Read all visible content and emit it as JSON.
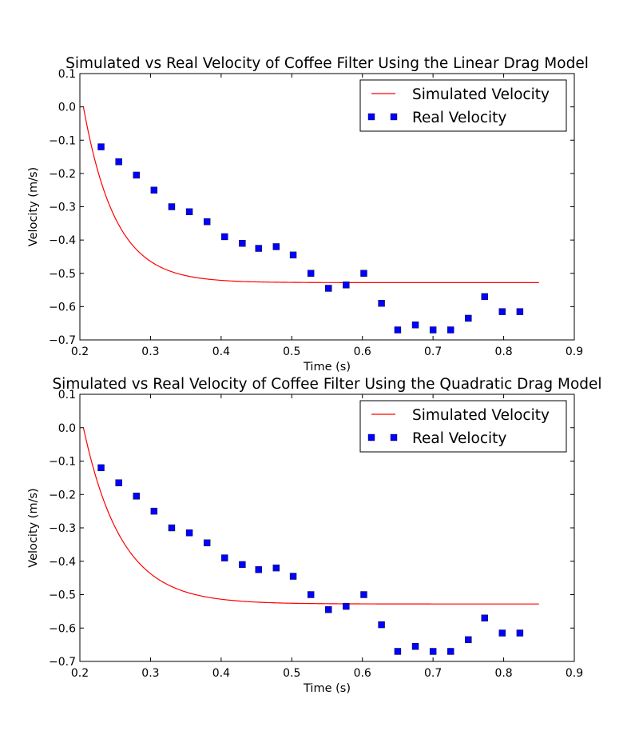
{
  "chart_data": [
    {
      "type": "line",
      "title": "Simulated vs Real Velocity of Coffee Filter Using the Linear Drag Model",
      "xlabel": "Time (s)",
      "ylabel": "Velocity (m/s)",
      "xlim": [
        0.2,
        0.9
      ],
      "ylim": [
        -0.7,
        0.1
      ],
      "xticks": [
        "0.2",
        "0.3",
        "0.4",
        "0.5",
        "0.6",
        "0.7",
        "0.8",
        "0.9"
      ],
      "yticks": [
        "0.1",
        "0.0",
        "−0.1",
        "−0.2",
        "−0.3",
        "−0.4",
        "−0.5",
        "−0.6",
        "−0.7"
      ],
      "legend_position": "top-right",
      "sim_model": {
        "start_time": 0.205,
        "end_time": 0.85,
        "terminal_velocity": -0.528,
        "time_constant": 0.045
      },
      "series": [
        {
          "name": "Simulated Velocity",
          "kind": "line",
          "color": "#ff0000"
        },
        {
          "name": "Real Velocity",
          "kind": "marker",
          "color": "#0000ff",
          "x": [
            0.23,
            0.255,
            0.28,
            0.305,
            0.33,
            0.355,
            0.38,
            0.405,
            0.43,
            0.453,
            0.478,
            0.502,
            0.527,
            0.552,
            0.577,
            0.602,
            0.627,
            0.65,
            0.675,
            0.7,
            0.725,
            0.75,
            0.773,
            0.798,
            0.823
          ],
          "y": [
            -0.12,
            -0.165,
            -0.205,
            -0.25,
            -0.3,
            -0.315,
            -0.345,
            -0.39,
            -0.41,
            -0.425,
            -0.42,
            -0.445,
            -0.5,
            -0.545,
            -0.535,
            -0.5,
            -0.59,
            -0.67,
            -0.655,
            -0.67,
            -0.67,
            -0.635,
            -0.57,
            -0.615,
            -0.615
          ]
        }
      ]
    },
    {
      "type": "line",
      "title": "Simulated vs Real Velocity of Coffee Filter Using the Quadratic Drag Model",
      "xlabel": "Time (s)",
      "ylabel": "Velocity (m/s)",
      "xlim": [
        0.2,
        0.9
      ],
      "ylim": [
        -0.7,
        0.1
      ],
      "xticks": [
        "0.2",
        "0.3",
        "0.4",
        "0.5",
        "0.6",
        "0.7",
        "0.8",
        "0.9"
      ],
      "yticks": [
        "0.1",
        "0.0",
        "−0.1",
        "−0.2",
        "−0.3",
        "−0.4",
        "−0.5",
        "−0.6",
        "−0.7"
      ],
      "legend_position": "top-right",
      "sim_model": {
        "start_time": 0.205,
        "end_time": 0.85,
        "terminal_velocity": -0.528,
        "time_constant": 0.054
      },
      "series": [
        {
          "name": "Simulated Velocity",
          "kind": "line",
          "color": "#ff0000"
        },
        {
          "name": "Real Velocity",
          "kind": "marker",
          "color": "#0000ff",
          "x": [
            0.23,
            0.255,
            0.28,
            0.305,
            0.33,
            0.355,
            0.38,
            0.405,
            0.43,
            0.453,
            0.478,
            0.502,
            0.527,
            0.552,
            0.577,
            0.602,
            0.627,
            0.65,
            0.675,
            0.7,
            0.725,
            0.75,
            0.773,
            0.798,
            0.823
          ],
          "y": [
            -0.12,
            -0.165,
            -0.205,
            -0.25,
            -0.3,
            -0.315,
            -0.345,
            -0.39,
            -0.41,
            -0.425,
            -0.42,
            -0.445,
            -0.5,
            -0.545,
            -0.535,
            -0.5,
            -0.59,
            -0.67,
            -0.655,
            -0.67,
            -0.67,
            -0.635,
            -0.57,
            -0.615,
            -0.615
          ]
        }
      ]
    }
  ]
}
